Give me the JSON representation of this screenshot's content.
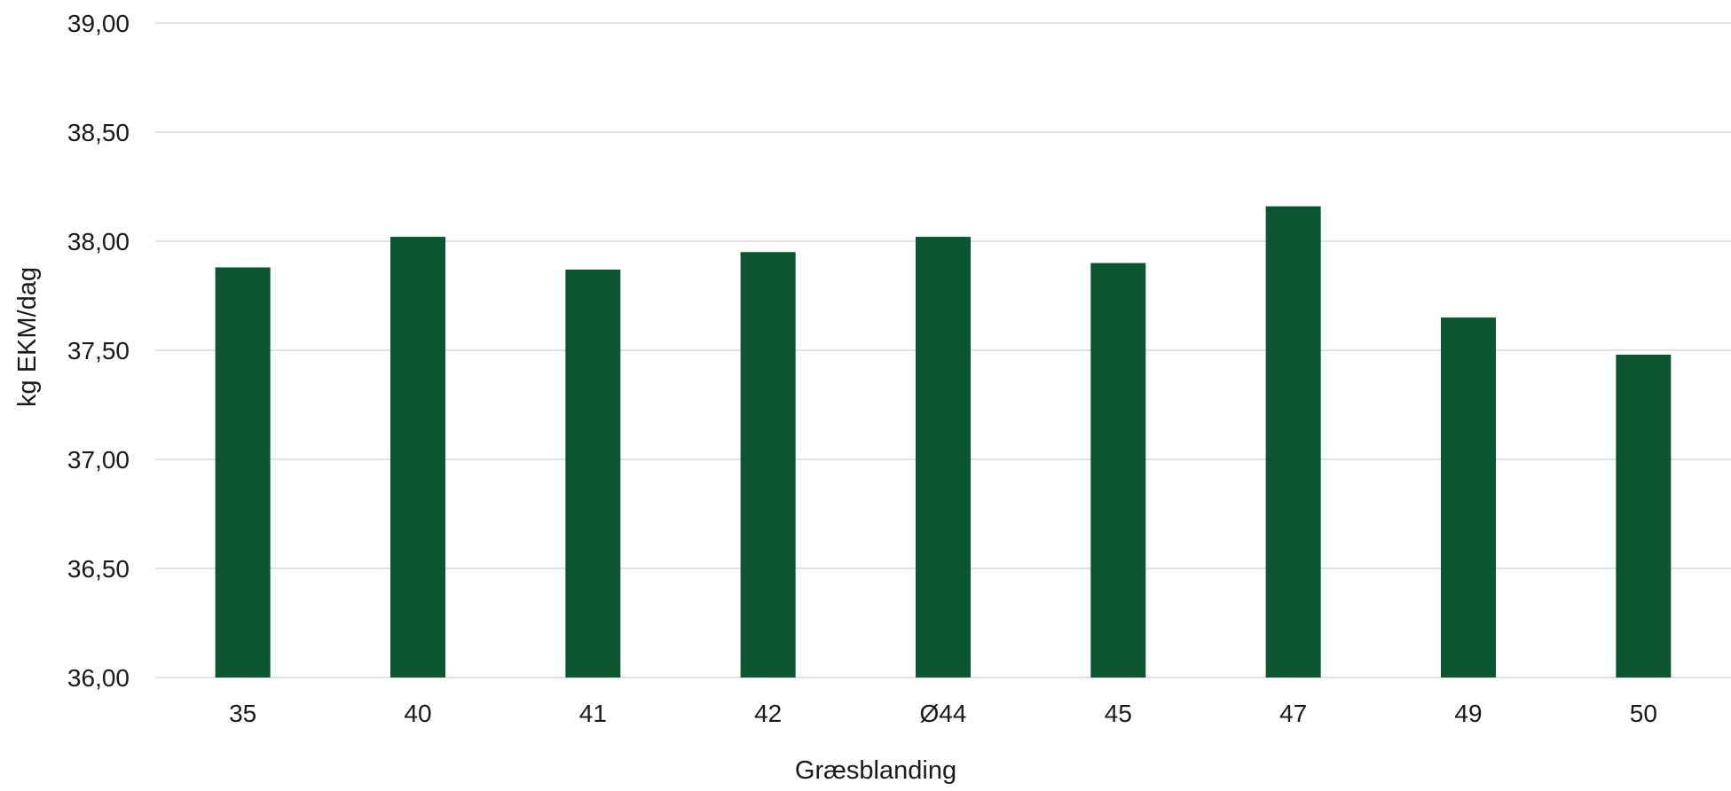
{
  "chart_data": {
    "type": "bar",
    "title": "",
    "xlabel": "Græsblanding",
    "ylabel": "kg EKM/dag",
    "categories": [
      "35",
      "40",
      "41",
      "42",
      "Ø44",
      "45",
      "47",
      "49",
      "50"
    ],
    "series": [
      {
        "values": [
          37.88,
          38.02,
          37.87,
          37.95,
          38.02,
          37.9,
          38.16,
          37.65,
          37.48
        ]
      }
    ],
    "ylim": [
      36,
      39
    ],
    "yticks": [
      36,
      36.5,
      37,
      37.5,
      38,
      38.5,
      39
    ],
    "ytick_labels": [
      "36,00",
      "36,50",
      "37,00",
      "37,50",
      "38,00",
      "38,50",
      "39,00"
    ],
    "grid": true,
    "legend": "none",
    "bar_color": "#0b5630",
    "grid_color": "#d9d9d9"
  }
}
